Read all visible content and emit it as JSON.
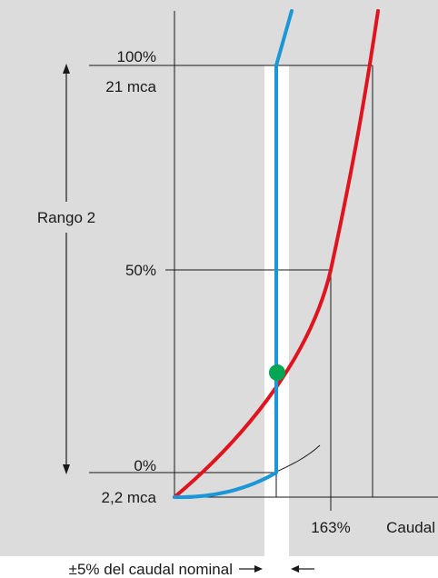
{
  "labels": {
    "top_percent": "100%",
    "top_pressure": "21 mca",
    "range": "Rango 2",
    "mid_percent": "50%",
    "bottom_percent": "0%",
    "bottom_pressure": "2,2 mca",
    "x_mark": "163%",
    "x_axis": "Caudal",
    "tolerance": "±5% del caudal nominal"
  },
  "colors": {
    "background": "#dcdcdc",
    "band": "#ffffff",
    "system_curve": "#e0141e",
    "valve_curve": "#1b96d6",
    "operating_point": "#00a651",
    "lines": "#1a1a1a"
  }
}
